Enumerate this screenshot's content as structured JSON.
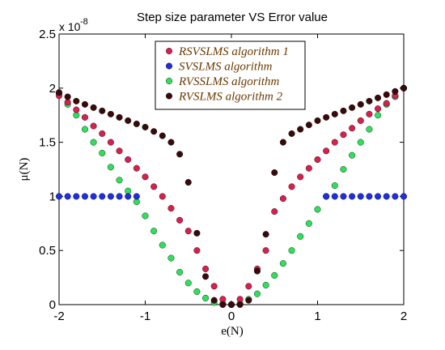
{
  "chart_data": {
    "type": "scatter",
    "title": "Step size parameter VS Error value",
    "xlabel": "e(N)",
    "ylabel": "μ(N)",
    "xlim": [
      -2,
      2
    ],
    "ylim": [
      0,
      2.5
    ],
    "y_exponent_base": "x 10",
    "y_exponent_power": "-8",
    "grid": false,
    "legend_position": "top-center",
    "x_ticks": [
      -2,
      -1,
      0,
      1,
      2
    ],
    "x_tick_labels": [
      "-2",
      "-1",
      "0",
      "1",
      "2"
    ],
    "y_ticks": [
      0,
      0.5,
      1,
      1.5,
      2,
      2.5
    ],
    "y_tick_labels": [
      "0",
      "0.5",
      "1",
      "1.5",
      "2",
      "2.5"
    ],
    "series": [
      {
        "name": "RSVSLMS algorithm 1",
        "color": "#d6204e",
        "x": [
          -2.0,
          -1.9,
          -1.8,
          -1.7,
          -1.6,
          -1.5,
          -1.4,
          -1.3,
          -1.2,
          -1.1,
          -1.0,
          -0.9,
          -0.8,
          -0.7,
          -0.6,
          -0.5,
          -0.4,
          -0.3,
          -0.2,
          -0.1,
          0.0,
          0.1,
          0.2,
          0.3,
          0.4,
          0.5,
          0.6,
          0.7,
          0.8,
          0.9,
          1.0,
          1.1,
          1.2,
          1.3,
          1.4,
          1.5,
          1.6,
          1.7,
          1.8,
          1.9,
          2.0
        ],
        "y": [
          1.93,
          1.87,
          1.8,
          1.73,
          1.65,
          1.58,
          1.5,
          1.42,
          1.34,
          1.26,
          1.18,
          1.09,
          1.0,
          0.89,
          0.78,
          0.68,
          0.5,
          0.33,
          0.17,
          0.05,
          0.0,
          0.05,
          0.17,
          0.33,
          0.5,
          0.86,
          0.98,
          1.09,
          1.18,
          1.26,
          1.34,
          1.42,
          1.5,
          1.57,
          1.63,
          1.7,
          1.76,
          1.81,
          1.86,
          1.93,
          2.0
        ]
      },
      {
        "name": "SVSLMS algorithm",
        "color": "#1f2ee0",
        "x": [
          -2.0,
          -1.9,
          -1.8,
          -1.7,
          -1.6,
          -1.5,
          -1.4,
          -1.3,
          -1.2,
          -1.1,
          1.1,
          1.2,
          1.3,
          1.4,
          1.5,
          1.6,
          1.7,
          1.8,
          1.9,
          2.0
        ],
        "y": [
          1.0,
          1.0,
          1.0,
          1.0,
          1.0,
          1.0,
          1.0,
          1.0,
          1.0,
          1.0,
          1.0,
          1.0,
          1.0,
          1.0,
          1.0,
          1.0,
          1.0,
          1.0,
          1.0,
          1.0
        ]
      },
      {
        "name": "RVSSLMS algorithm",
        "color": "#2fe05a",
        "x": [
          -2.0,
          -1.9,
          -1.8,
          -1.7,
          -1.6,
          -1.5,
          -1.4,
          -1.3,
          -1.2,
          -1.1,
          -1.0,
          -0.9,
          -0.8,
          -0.7,
          -0.6,
          -0.5,
          -0.4,
          -0.3,
          -0.2,
          -0.1,
          0.0,
          0.1,
          0.2,
          0.3,
          0.4,
          0.5,
          0.6,
          0.7,
          0.8,
          0.9,
          1.0,
          1.1,
          1.2,
          1.3,
          1.4,
          1.5,
          1.6,
          1.7,
          1.8,
          1.9,
          2.0
        ],
        "y": [
          1.95,
          1.85,
          1.75,
          1.62,
          1.5,
          1.4,
          1.27,
          1.15,
          1.05,
          0.95,
          0.82,
          0.68,
          0.55,
          0.43,
          0.3,
          0.2,
          0.12,
          0.06,
          0.02,
          0.01,
          0.0,
          0.01,
          0.05,
          0.1,
          0.18,
          0.27,
          0.38,
          0.5,
          0.63,
          0.75,
          0.88,
          1.0,
          1.1,
          1.25,
          1.38,
          1.5,
          1.62,
          1.75,
          1.85,
          1.92,
          2.0
        ]
      },
      {
        "name": "RVSLMS algorithm 2",
        "color": "#3a0a0a",
        "x": [
          -2.0,
          -1.9,
          -1.8,
          -1.7,
          -1.6,
          -1.5,
          -1.4,
          -1.3,
          -1.2,
          -1.1,
          -1.0,
          -0.9,
          -0.8,
          -0.7,
          -0.6,
          -0.5,
          -0.4,
          -0.3,
          -0.2,
          -0.1,
          0.0,
          0.1,
          0.2,
          0.3,
          0.4,
          0.5,
          0.6,
          0.7,
          0.8,
          0.9,
          1.0,
          1.1,
          1.2,
          1.3,
          1.4,
          1.5,
          1.6,
          1.7,
          1.8,
          1.9,
          2.0
        ],
        "y": [
          1.96,
          1.92,
          1.88,
          1.85,
          1.82,
          1.79,
          1.76,
          1.73,
          1.7,
          1.67,
          1.64,
          1.6,
          1.56,
          1.5,
          1.39,
          1.13,
          0.66,
          0.26,
          0.04,
          0.0,
          0.0,
          0.0,
          0.04,
          0.31,
          0.65,
          1.22,
          1.5,
          1.58,
          1.62,
          1.66,
          1.7,
          1.73,
          1.76,
          1.79,
          1.82,
          1.85,
          1.88,
          1.91,
          1.94,
          1.97,
          2.0
        ]
      }
    ]
  }
}
